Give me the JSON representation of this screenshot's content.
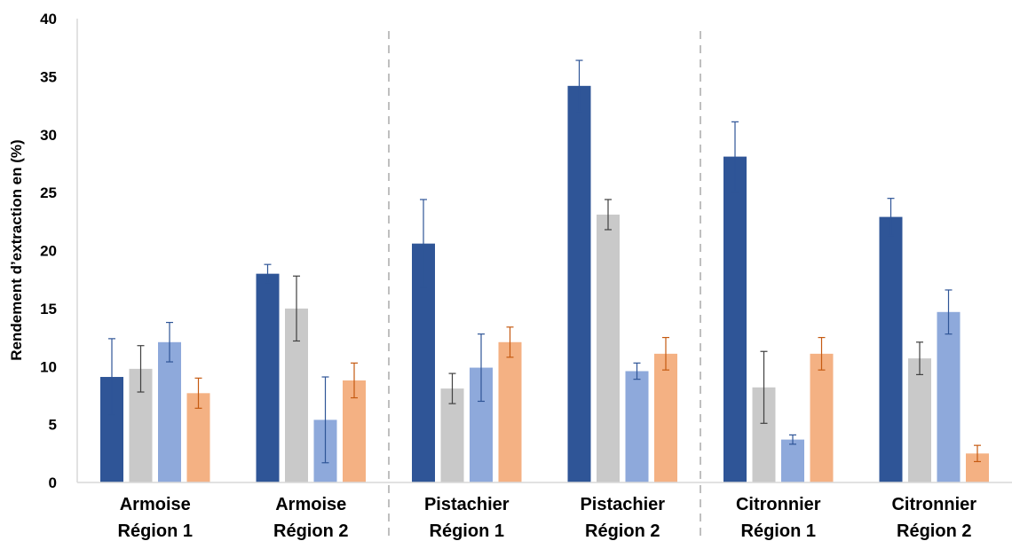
{
  "chart_data": {
    "type": "bar",
    "ylabel": "Rendement d’extraction en (%)",
    "xlabel": "",
    "ylim": [
      0,
      40
    ],
    "yticks": [
      0,
      5,
      10,
      15,
      20,
      25,
      30,
      35,
      40
    ],
    "grid": false,
    "legend": "none",
    "separators_after_groups": [
      2,
      4
    ],
    "categories": [
      {
        "line1": "Armoise",
        "line2": "Région 1"
      },
      {
        "line1": "Armoise",
        "line2": "Région 2"
      },
      {
        "line1": "Pistachier",
        "line2": "Région 1"
      },
      {
        "line1": "Pistachier",
        "line2": "Région 2"
      },
      {
        "line1": "Citronnier",
        "line2": "Région 1"
      },
      {
        "line1": "Citronnier",
        "line2": "Région 2"
      }
    ],
    "series": [
      {
        "color": "#2F5597",
        "error_color": "#2F5597",
        "values": [
          9.1,
          18.0,
          20.6,
          34.2,
          28.1,
          22.9
        ],
        "errors": [
          3.3,
          0.8,
          3.8,
          2.2,
          3.0,
          1.6
        ]
      },
      {
        "color": "#C9C9C9",
        "error_color": "#404040",
        "values": [
          9.8,
          15.0,
          8.1,
          23.1,
          8.2,
          10.7
        ],
        "errors": [
          2.0,
          2.8,
          1.3,
          1.3,
          3.1,
          1.4
        ]
      },
      {
        "color": "#8EA9DB",
        "error_color": "#2F5597",
        "values": [
          12.1,
          5.4,
          9.9,
          9.6,
          3.7,
          14.7
        ],
        "errors": [
          1.7,
          3.7,
          2.9,
          0.7,
          0.4,
          1.9
        ]
      },
      {
        "color": "#F4B183",
        "error_color": "#C55A11",
        "values": [
          7.7,
          8.8,
          12.1,
          11.1,
          11.1,
          2.5
        ],
        "errors": [
          1.3,
          1.5,
          1.3,
          1.4,
          1.4,
          0.7
        ]
      }
    ]
  }
}
